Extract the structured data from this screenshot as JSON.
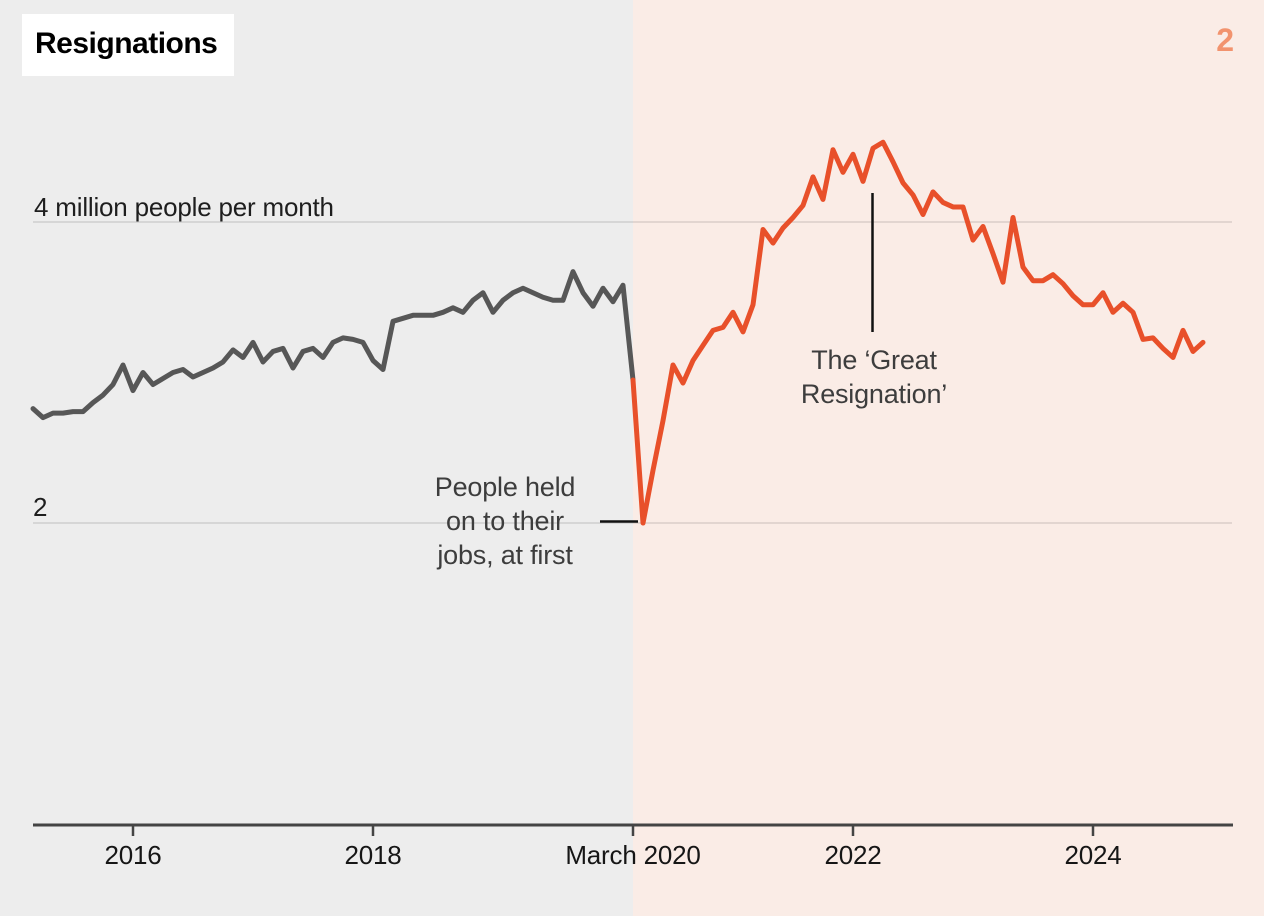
{
  "title": "Resignations",
  "slide_number": "2",
  "y_axis": {
    "label_top": "4 million people per month",
    "label_bottom": "2"
  },
  "annotations": {
    "great_resignation": {
      "line1": "The ‘Great",
      "line2": "Resignation’"
    },
    "held_on": {
      "line1": "People held",
      "line2": "on to their",
      "line3": "jobs, at first"
    }
  },
  "colors": {
    "background_before": "#ededed",
    "background_after": "#faece6",
    "line_before": "#575757",
    "line_after": "#e8502a",
    "slide_number": "#f2936e",
    "gridline": "rgba(0,0,0,0.13)",
    "axis": "#444444",
    "annotation_pointer": "#111111"
  },
  "chart_data": {
    "type": "line",
    "title": "Resignations",
    "ylabel": "million people per month",
    "x_range": [
      "2015-03",
      "2024-12"
    ],
    "ylim": [
      1.8,
      4.8
    ],
    "gridlines_at": [
      2,
      4
    ],
    "grid": true,
    "legend": false,
    "x_ticks": [
      {
        "label": "2016",
        "month_index": 0
      },
      {
        "label": "2018",
        "month_index": 24
      },
      {
        "label": "March 2020",
        "month_index": 50
      },
      {
        "label": "2022",
        "month_index": 72
      },
      {
        "label": "2024",
        "month_index": 96
      }
    ],
    "start_month_index": -10,
    "split_month_index": 50,
    "series": [
      {
        "name": "Before March 2020",
        "color_key": "line_before"
      },
      {
        "name": "After March 2020 (The Great Resignation era)",
        "color_key": "line_after"
      }
    ],
    "values": [
      2.76,
      2.7,
      2.73,
      2.73,
      2.74,
      2.74,
      2.8,
      2.85,
      2.92,
      3.05,
      2.88,
      3.0,
      2.92,
      2.96,
      3.0,
      3.02,
      2.97,
      3.0,
      3.03,
      3.07,
      3.15,
      3.1,
      3.2,
      3.07,
      3.14,
      3.16,
      3.03,
      3.14,
      3.16,
      3.1,
      3.2,
      3.23,
      3.22,
      3.2,
      3.08,
      3.02,
      3.34,
      3.36,
      3.38,
      3.38,
      3.38,
      3.4,
      3.43,
      3.4,
      3.48,
      3.53,
      3.4,
      3.48,
      3.53,
      3.56,
      3.53,
      3.5,
      3.48,
      3.48,
      3.67,
      3.53,
      3.44,
      3.56,
      3.47,
      3.58,
      2.95,
      2.0,
      2.35,
      2.68,
      3.05,
      2.93,
      3.08,
      3.18,
      3.28,
      3.3,
      3.4,
      3.27,
      3.45,
      3.95,
      3.86,
      3.96,
      4.03,
      4.11,
      4.3,
      4.15,
      4.48,
      4.33,
      4.45,
      4.27,
      4.49,
      4.53,
      4.4,
      4.26,
      4.18,
      4.05,
      4.2,
      4.13,
      4.1,
      4.1,
      3.88,
      3.97,
      3.79,
      3.6,
      4.03,
      3.7,
      3.61,
      3.61,
      3.65,
      3.59,
      3.51,
      3.45,
      3.45,
      3.53,
      3.4,
      3.46,
      3.4,
      3.22,
      3.23,
      3.16,
      3.1,
      3.28,
      3.14,
      3.2
    ]
  }
}
